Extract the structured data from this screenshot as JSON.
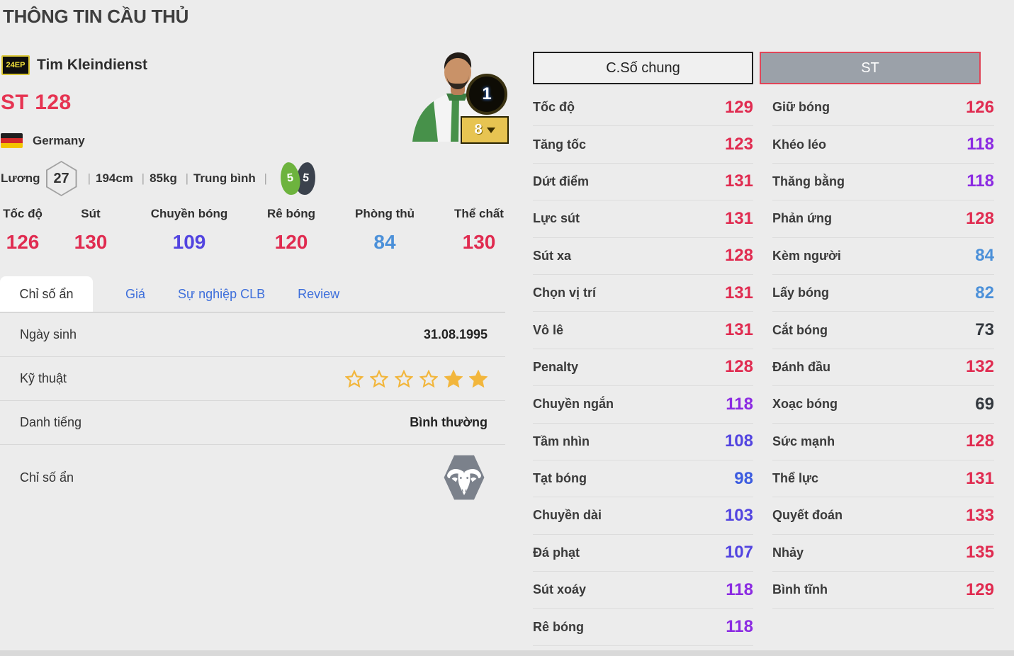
{
  "page": {
    "title": "THÔNG TIN CẦU THỦ"
  },
  "player": {
    "season_badge": "24EP",
    "name": "Tim Kleindienst",
    "position": "ST",
    "rating": "128",
    "nation": "Germany",
    "salary_label": "Lương",
    "salary": "27",
    "height": "194cm",
    "weight": "85kg",
    "body_type": "Trung bình",
    "left_foot": "5",
    "right_foot": "5",
    "upgrade_badge": "1",
    "team_color_level": "8"
  },
  "main_stats": [
    {
      "label": "Tốc độ",
      "value": 126
    },
    {
      "label": "Sút",
      "value": 130
    },
    {
      "label": "Chuyền bóng",
      "value": 109
    },
    {
      "label": "Rê bóng",
      "value": 120
    },
    {
      "label": "Phòng thủ",
      "value": 84
    },
    {
      "label": "Thể chất",
      "value": 130
    }
  ],
  "tabs": {
    "active": "Chỉ số ẩn",
    "links": [
      "Giá",
      "Sự nghiệp CLB",
      "Review"
    ]
  },
  "info_table": {
    "birth_label": "Ngày sinh",
    "birth_value": "31.08.1995",
    "skill_label": "Kỹ thuật",
    "stars_total": 6,
    "stars_filled": 2,
    "fame_label": "Danh tiếng",
    "fame_value": "Bình thường",
    "hidden_label": "Chỉ số ẩn",
    "hidden_icon": "buffalo-icon"
  },
  "stat_panel": {
    "general_button": "C.Số chung",
    "position_button": "ST",
    "left_column": [
      {
        "label": "Tốc độ",
        "value": 129
      },
      {
        "label": "Tăng tốc",
        "value": 123
      },
      {
        "label": "Dứt điểm",
        "value": 131
      },
      {
        "label": "Lực sút",
        "value": 131
      },
      {
        "label": "Sút xa",
        "value": 128
      },
      {
        "label": "Chọn vị trí",
        "value": 131
      },
      {
        "label": "Vô lê",
        "value": 131
      },
      {
        "label": "Penalty",
        "value": 128
      },
      {
        "label": "Chuyền ngắn",
        "value": 118
      },
      {
        "label": "Tầm nhìn",
        "value": 108
      },
      {
        "label": "Tạt bóng",
        "value": 98
      },
      {
        "label": "Chuyền dài",
        "value": 103
      },
      {
        "label": "Đá phạt",
        "value": 107
      },
      {
        "label": "Sút xoáy",
        "value": 118
      },
      {
        "label": "Rê bóng",
        "value": 118
      }
    ],
    "right_column": [
      {
        "label": "Giữ bóng",
        "value": 126
      },
      {
        "label": "Khéo léo",
        "value": 118
      },
      {
        "label": "Thăng bằng",
        "value": 118
      },
      {
        "label": "Phản ứng",
        "value": 128
      },
      {
        "label": "Kèm người",
        "value": 84
      },
      {
        "label": "Lấy bóng",
        "value": 82
      },
      {
        "label": "Cắt bóng",
        "value": 73
      },
      {
        "label": "Đánh đầu",
        "value": 132
      },
      {
        "label": "Xoạc bóng",
        "value": 69
      },
      {
        "label": "Sức mạnh",
        "value": 128
      },
      {
        "label": "Thể lực",
        "value": 131
      },
      {
        "label": "Quyết đoán",
        "value": 133
      },
      {
        "label": "Nhảy",
        "value": 135
      },
      {
        "label": "Bình tĩnh",
        "value": 129
      }
    ]
  },
  "colors": {
    "red": "#e02b50",
    "purple": "#8b2ae2",
    "blue_violet": "#5244e0",
    "blue": "#3c5ce0",
    "light_blue": "#4b90d9",
    "dark": "#33383e",
    "gold": "#f2b63c",
    "tab_link_blue": "#3e6fdb",
    "accent_rating": "#e63452",
    "level_badge_gold": "#e7c452",
    "hex_icon_gray": "#7b818b"
  }
}
